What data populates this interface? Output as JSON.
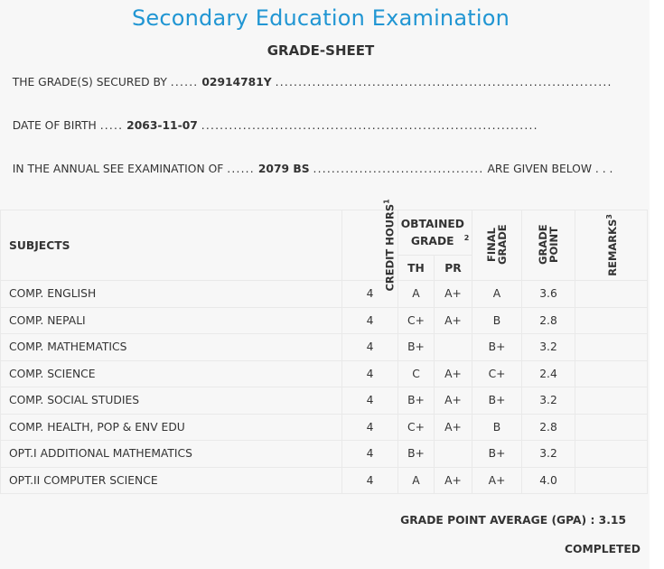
{
  "header": {
    "title": "Secondary Education Examination",
    "subtitle": "GRADE-SHEET"
  },
  "info": {
    "secured_by_label": "THE GRADE(S) SECURED BY",
    "symbol_number": "02914781Y",
    "dob_label": "DATE OF BIRTH",
    "dob": "2063-11-07",
    "exam_label": "IN THE ANNUAL SEE EXAMINATION OF",
    "exam_year": "2079 BS",
    "exam_suffix": "ARE GIVEN BELOW . . ."
  },
  "table": {
    "headers": {
      "subjects": "SUBJECTS",
      "credit_hours": "CREDIT HOURS",
      "credit_sup": "1",
      "obtained_grade": "OBTAINED GRADE",
      "obtained_sup": "2",
      "th": "TH",
      "pr": "PR",
      "final_grade": "FINAL GRADE",
      "grade_point": "GRADE POINT",
      "remarks": "REMARKS",
      "remarks_sup": "3"
    },
    "rows": [
      {
        "subject": "COMP. ENGLISH",
        "credit": "4",
        "th": "A",
        "pr": "A+",
        "final": "A",
        "gp": "3.6",
        "remarks": ""
      },
      {
        "subject": "COMP. NEPALI",
        "credit": "4",
        "th": "C+",
        "pr": "A+",
        "final": "B",
        "gp": "2.8",
        "remarks": ""
      },
      {
        "subject": "COMP. MATHEMATICS",
        "credit": "4",
        "th": "B+",
        "pr": "",
        "final": "B+",
        "gp": "3.2",
        "remarks": ""
      },
      {
        "subject": "COMP. SCIENCE",
        "credit": "4",
        "th": "C",
        "pr": "A+",
        "final": "C+",
        "gp": "2.4",
        "remarks": ""
      },
      {
        "subject": "COMP. SOCIAL STUDIES",
        "credit": "4",
        "th": "B+",
        "pr": "A+",
        "final": "B+",
        "gp": "3.2",
        "remarks": ""
      },
      {
        "subject": "COMP. HEALTH, POP & ENV EDU",
        "credit": "4",
        "th": "C+",
        "pr": "A+",
        "final": "B",
        "gp": "2.8",
        "remarks": ""
      },
      {
        "subject": "OPT.I ADDITIONAL MATHEMATICS",
        "credit": "4",
        "th": "B+",
        "pr": "",
        "final": "B+",
        "gp": "3.2",
        "remarks": ""
      },
      {
        "subject": "OPT.II COMPUTER SCIENCE",
        "credit": "4",
        "th": "A",
        "pr": "A+",
        "final": "A+",
        "gp": "4.0",
        "remarks": ""
      }
    ]
  },
  "summary": {
    "gpa_label": "GRADE POINT AVERAGE (GPA) :",
    "gpa_value": "3.15",
    "status": "COMPLETED"
  },
  "colors": {
    "title": "#2196d3",
    "background": "#f7f7f7",
    "border": "#e9e9e9"
  }
}
